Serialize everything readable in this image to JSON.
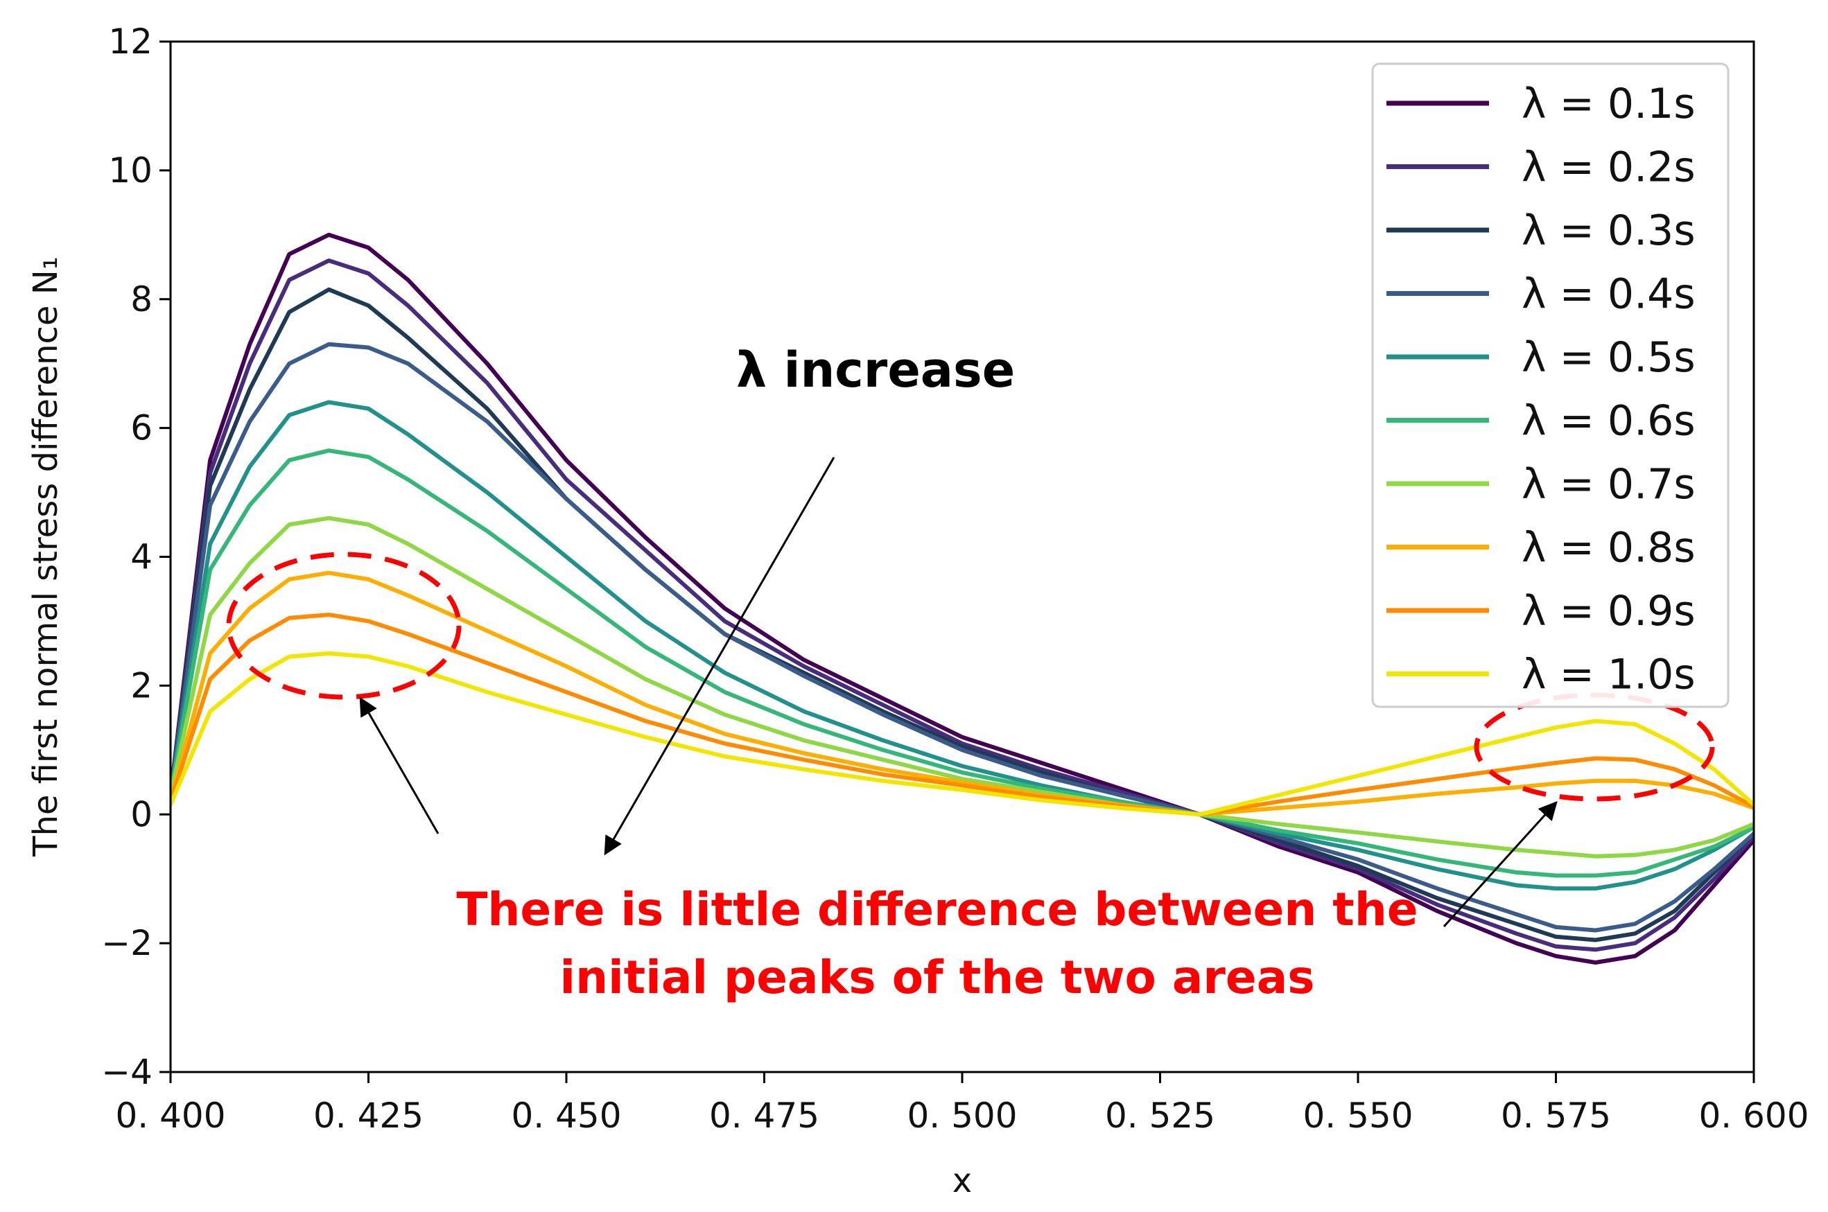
{
  "chart_data": {
    "type": "line",
    "title": "",
    "xlabel": "x",
    "ylabel": "The first normal stress difference N₁",
    "xlim": [
      0.4,
      0.6
    ],
    "ylim": [
      -4,
      12
    ],
    "x_ticks": [
      0.4,
      0.425,
      0.45,
      0.475,
      0.5,
      0.525,
      0.55,
      0.575,
      0.6
    ],
    "x_tick_labels": [
      "0. 400",
      "0. 425",
      "0. 450",
      "0. 475",
      "0. 500",
      "0. 525",
      "0. 550",
      "0. 575",
      "0. 600"
    ],
    "y_ticks": [
      -4,
      -2,
      0,
      2,
      4,
      6,
      8,
      10,
      12
    ],
    "y_tick_labels": [
      "−4",
      "−2",
      "0",
      "2",
      "4",
      "6",
      "8",
      "10",
      "12"
    ],
    "grid": false,
    "legend_position": "top-right",
    "x": [
      0.4,
      0.405,
      0.41,
      0.415,
      0.42,
      0.425,
      0.43,
      0.44,
      0.45,
      0.46,
      0.47,
      0.48,
      0.49,
      0.5,
      0.51,
      0.52,
      0.53,
      0.54,
      0.55,
      0.56,
      0.57,
      0.575,
      0.58,
      0.585,
      0.59,
      0.595,
      0.6
    ],
    "series": [
      {
        "name": "λ = 0.1s",
        "color": "#440154",
        "values": [
          0.3,
          5.5,
          7.3,
          8.7,
          9.0,
          8.8,
          8.3,
          7.0,
          5.5,
          4.3,
          3.2,
          2.4,
          1.8,
          1.2,
          0.8,
          0.4,
          0.0,
          -0.5,
          -0.9,
          -1.5,
          -2.0,
          -2.2,
          -2.3,
          -2.2,
          -1.8,
          -1.1,
          -0.4
        ]
      },
      {
        "name": "λ = 0.2s",
        "color": "#472d7b",
        "values": [
          0.3,
          5.3,
          7.0,
          8.3,
          8.6,
          8.4,
          7.9,
          6.7,
          5.2,
          4.1,
          3.0,
          2.3,
          1.7,
          1.1,
          0.7,
          0.35,
          0.0,
          -0.45,
          -0.85,
          -1.4,
          -1.85,
          -2.05,
          -2.1,
          -2.0,
          -1.6,
          -1.0,
          -0.35
        ]
      },
      {
        "name": "λ = 0.3s",
        "color": "#1f3a55",
        "values": [
          0.3,
          5.1,
          6.6,
          7.8,
          8.15,
          7.9,
          7.4,
          6.3,
          4.9,
          3.8,
          2.8,
          2.2,
          1.6,
          1.05,
          0.65,
          0.3,
          0.0,
          -0.4,
          -0.8,
          -1.3,
          -1.7,
          -1.9,
          -1.95,
          -1.85,
          -1.5,
          -0.9,
          -0.3
        ]
      },
      {
        "name": "λ = 0.4s",
        "color": "#3b5c8a",
        "values": [
          0.3,
          4.8,
          6.1,
          7.0,
          7.3,
          7.25,
          7.0,
          6.1,
          4.9,
          3.8,
          2.8,
          2.15,
          1.55,
          1.0,
          0.6,
          0.3,
          0.0,
          -0.35,
          -0.7,
          -1.15,
          -1.55,
          -1.75,
          -1.8,
          -1.7,
          -1.35,
          -0.85,
          -0.3
        ]
      },
      {
        "name": "λ = 0.5s",
        "color": "#21918c",
        "values": [
          0.3,
          4.2,
          5.4,
          6.2,
          6.4,
          6.3,
          5.9,
          5.0,
          4.0,
          3.0,
          2.2,
          1.6,
          1.15,
          0.75,
          0.45,
          0.2,
          0.0,
          -0.3,
          -0.55,
          -0.85,
          -1.1,
          -1.15,
          -1.15,
          -1.05,
          -0.85,
          -0.55,
          -0.2
        ]
      },
      {
        "name": "λ = 0.6s",
        "color": "#35b779",
        "values": [
          0.3,
          3.8,
          4.8,
          5.5,
          5.65,
          5.55,
          5.2,
          4.4,
          3.5,
          2.6,
          1.9,
          1.4,
          1.0,
          0.65,
          0.4,
          0.2,
          0.0,
          -0.25,
          -0.45,
          -0.7,
          -0.9,
          -0.95,
          -0.95,
          -0.9,
          -0.7,
          -0.5,
          -0.2
        ]
      },
      {
        "name": "λ = 0.7s",
        "color": "#8fd744",
        "values": [
          0.3,
          3.1,
          3.9,
          4.5,
          4.6,
          4.5,
          4.2,
          3.5,
          2.8,
          2.1,
          1.55,
          1.15,
          0.85,
          0.55,
          0.35,
          0.15,
          0.0,
          -0.15,
          -0.28,
          -0.42,
          -0.55,
          -0.6,
          -0.65,
          -0.63,
          -0.55,
          -0.4,
          -0.15
        ]
      },
      {
        "name": "λ = 0.8s",
        "color": "#fdae00",
        "values": [
          0.2,
          2.5,
          3.2,
          3.65,
          3.75,
          3.65,
          3.4,
          2.85,
          2.3,
          1.7,
          1.25,
          0.95,
          0.7,
          0.5,
          0.3,
          0.15,
          0.0,
          0.1,
          0.2,
          0.32,
          0.42,
          0.48,
          0.52,
          0.52,
          0.45,
          0.32,
          0.1
        ]
      },
      {
        "name": "λ = 0.9s",
        "color": "#ff8c00",
        "values": [
          0.2,
          2.1,
          2.7,
          3.05,
          3.1,
          3.0,
          2.8,
          2.35,
          1.9,
          1.45,
          1.1,
          0.85,
          0.62,
          0.45,
          0.27,
          0.13,
          0.0,
          0.2,
          0.38,
          0.55,
          0.72,
          0.8,
          0.87,
          0.85,
          0.7,
          0.45,
          0.12
        ]
      },
      {
        "name": "λ = 1.0s",
        "color": "#f2e600",
        "values": [
          0.15,
          1.6,
          2.1,
          2.45,
          2.5,
          2.45,
          2.3,
          1.9,
          1.55,
          1.2,
          0.9,
          0.7,
          0.52,
          0.38,
          0.22,
          0.1,
          0.0,
          0.3,
          0.6,
          0.9,
          1.2,
          1.35,
          1.45,
          1.4,
          1.1,
          0.7,
          0.15
        ]
      }
    ],
    "annotations": {
      "lambda_arrow_label": "λ increase",
      "difference_note_line1": "There is little difference between the",
      "difference_note_line2": "initial peaks of the two areas"
    }
  }
}
